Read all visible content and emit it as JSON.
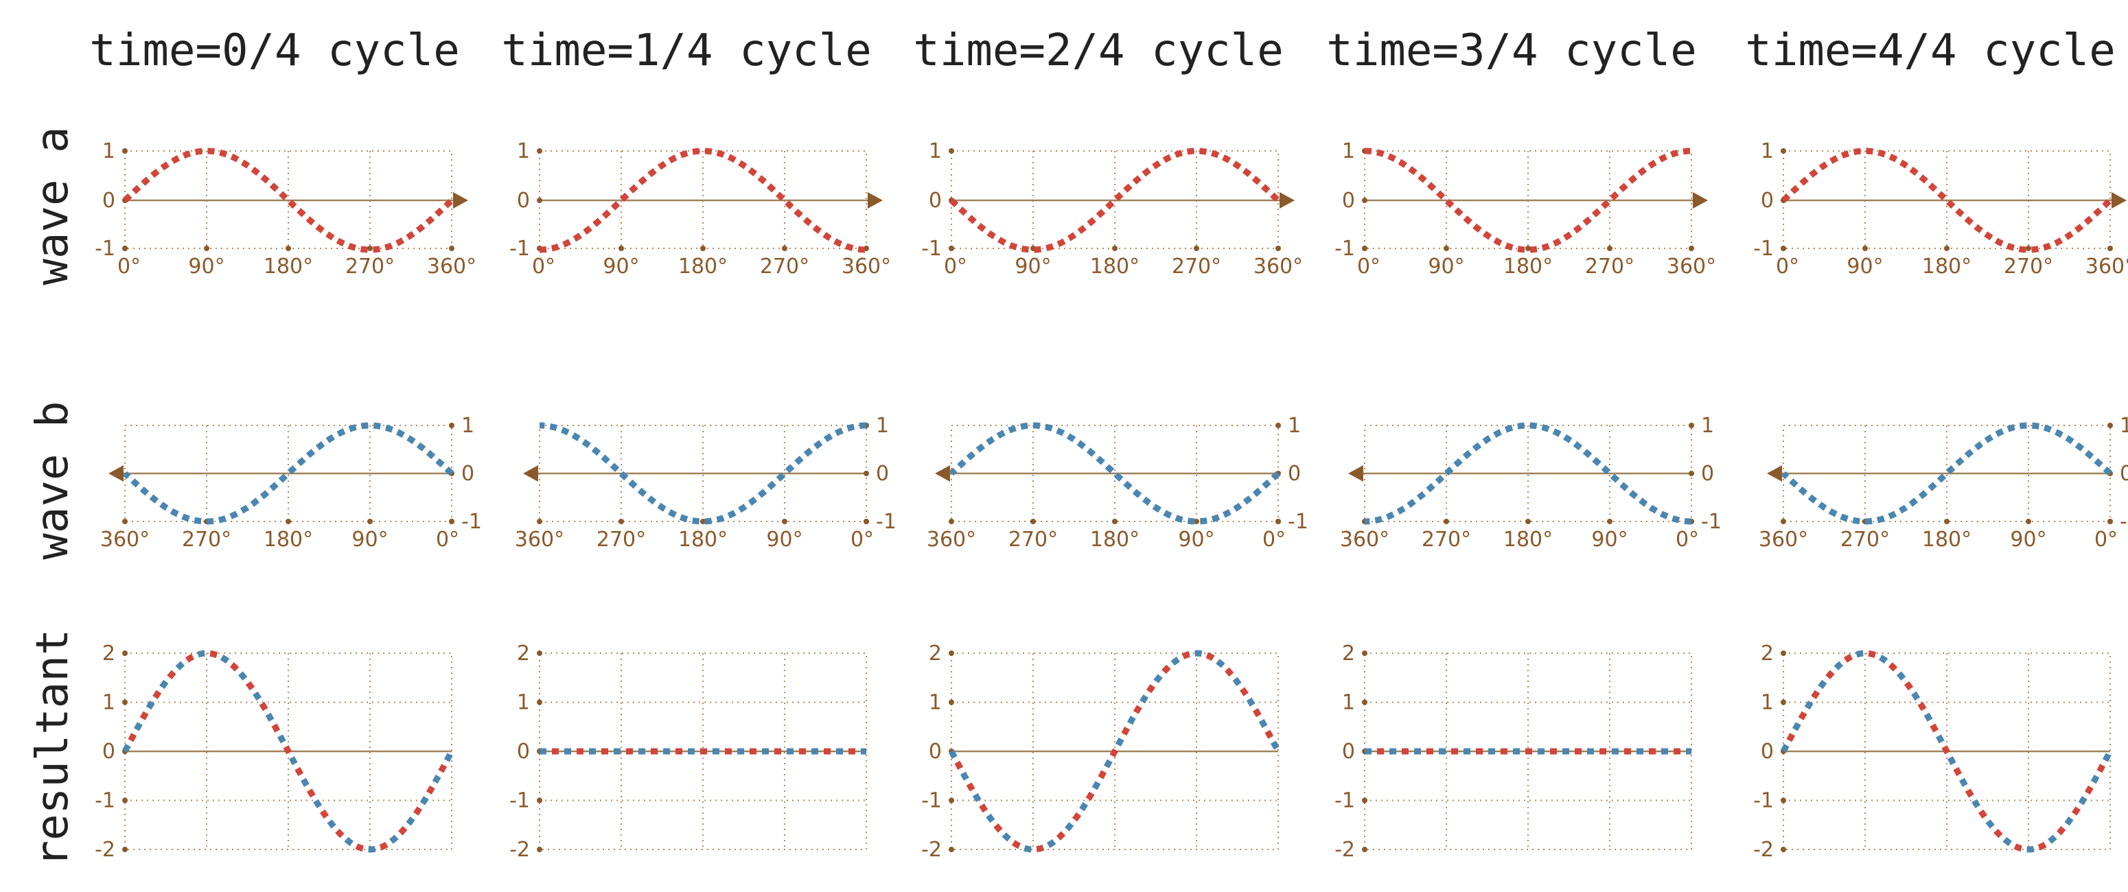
{
  "columns": [
    "time=0/4 cycle",
    "time=1/4 cycle",
    "time=2/4 cycle",
    "time=3/4 cycle",
    "time=4/4 cycle"
  ],
  "rows": [
    "wave a",
    "wave b",
    "resultant"
  ],
  "colors": {
    "wave_a": "#d1453a",
    "wave_b": "#4a86b0",
    "axis": "#a0825a",
    "tick": "#8a5a2b"
  },
  "chart_data": [
    {
      "type": "line",
      "role": "wave a",
      "direction": "right",
      "x_ticks": [
        "0°",
        "90°",
        "180°",
        "270°",
        "360°"
      ],
      "y_ticks": [
        "1",
        "0",
        "-1"
      ],
      "ylim": [
        -1,
        1
      ],
      "xlim": [
        0,
        360
      ],
      "phase_offsets_deg": [
        0,
        -90,
        -180,
        -270,
        -360
      ],
      "function": "sin(x + phase)"
    },
    {
      "type": "line",
      "role": "wave b",
      "direction": "left",
      "x_ticks": [
        "360°",
        "270°",
        "180°",
        "90°",
        "0°"
      ],
      "y_ticks": [
        "1",
        "0",
        "-1"
      ],
      "ylim": [
        -1,
        1
      ],
      "xlim": [
        360,
        0
      ],
      "phase_offsets_deg": [
        0,
        90,
        180,
        270,
        360
      ],
      "function": "sin(x + phase)"
    },
    {
      "type": "line",
      "role": "resultant",
      "y_ticks": [
        "2",
        "1",
        "0",
        "-1",
        "-2"
      ],
      "ylim": [
        -2,
        2
      ],
      "xlim": [
        0,
        360
      ],
      "function": "wave a + wave b",
      "amplitudes": [
        2,
        0,
        -2,
        0,
        2
      ]
    }
  ]
}
